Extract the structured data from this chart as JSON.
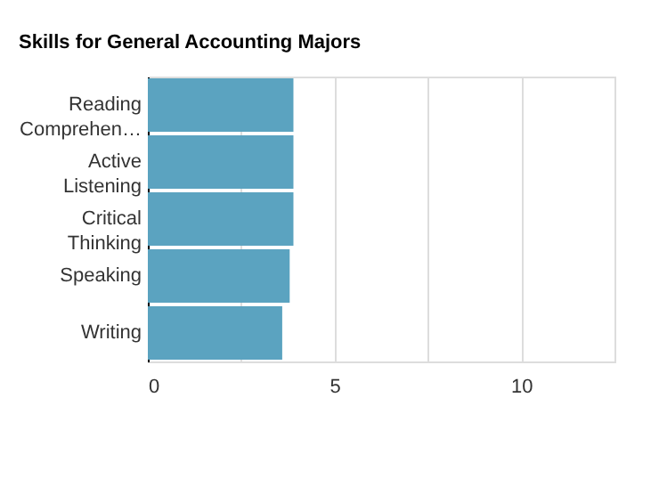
{
  "chart_data": {
    "type": "bar",
    "orientation": "horizontal",
    "title": "Skills for General Accounting Majors",
    "categories": [
      "Reading Comprehen…",
      "Active Listening",
      "Critical Thinking",
      "Speaking",
      "Writing"
    ],
    "values": [
      3.9,
      3.9,
      3.9,
      3.8,
      3.6
    ],
    "color": "#5ba3c0",
    "xlim": [
      0,
      12.5
    ],
    "xticks": [
      0,
      {
        "value": 2.5,
        "label": null
      },
      5,
      {
        "value": 7.5,
        "label": null
      },
      10
    ],
    "grid": "x"
  }
}
